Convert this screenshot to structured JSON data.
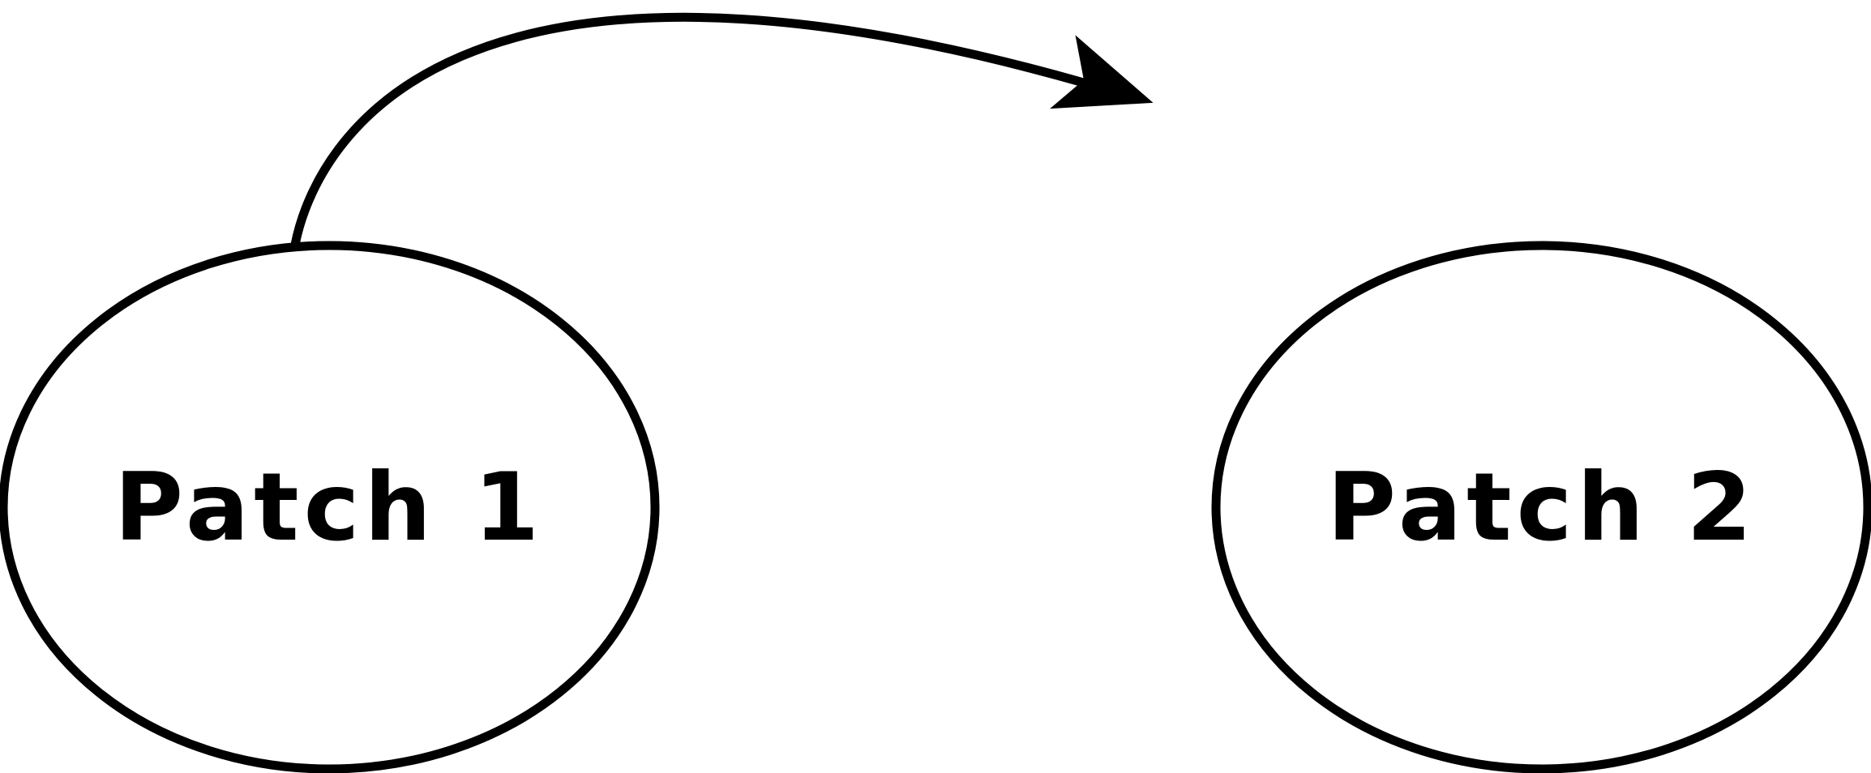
{
  "diagram": {
    "nodes": [
      {
        "id": "patch1",
        "label": "Patch 1"
      },
      {
        "id": "patch2",
        "label": "Patch 2"
      }
    ],
    "edges": [
      {
        "from": "patch1",
        "to": "patch2",
        "style": "curved-arrow"
      }
    ],
    "colors": {
      "stroke": "#000000",
      "fill": "#ffffff",
      "text": "#000000"
    }
  }
}
